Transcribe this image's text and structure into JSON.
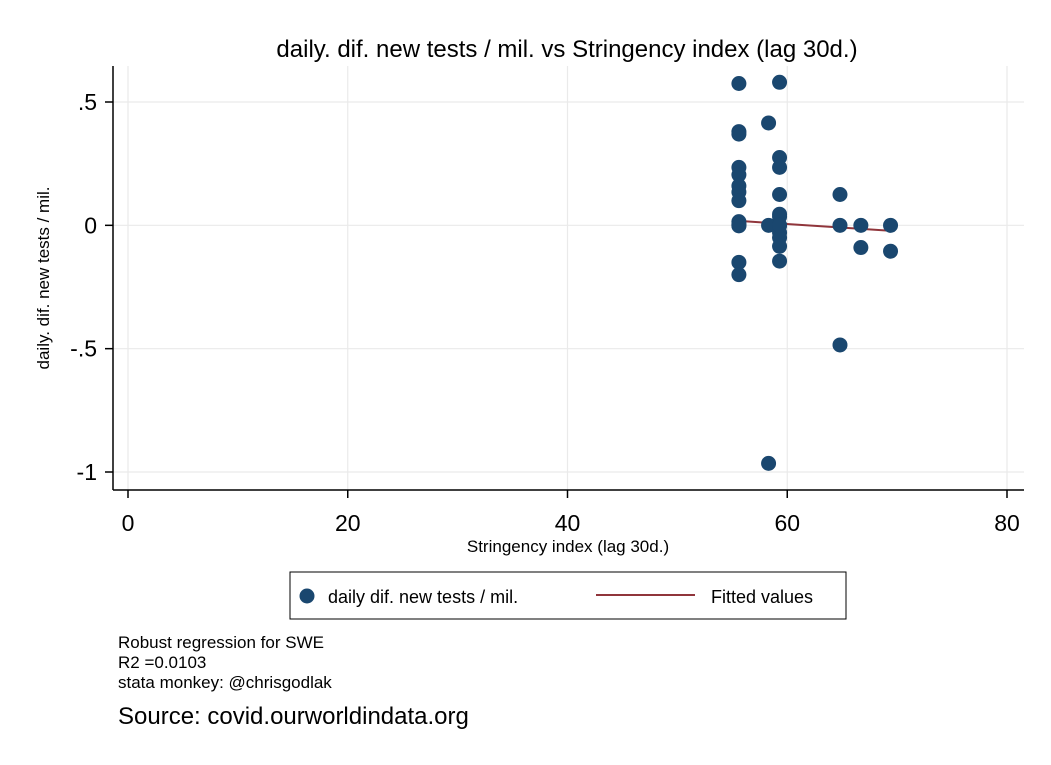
{
  "chart_data": {
    "type": "scatter",
    "title": "daily. dif. new tests / mil. vs Stringency index (lag 30d.)",
    "xlabel": "Stringency index (lag 30d.)",
    "ylabel": "daily. dif. new tests / mil.",
    "xlim": [
      0,
      80
    ],
    "ylim": [
      -1,
      0.5
    ],
    "xticks": [
      0,
      20,
      40,
      60,
      80
    ],
    "xtick_labels": [
      "0",
      "20",
      "40",
      "60",
      "80"
    ],
    "yticks": [
      0.5,
      0,
      -0.5,
      -1
    ],
    "ytick_labels": [
      ".5",
      "0",
      "-.5",
      "-1"
    ],
    "grid": true,
    "legend_position": "bottom",
    "series": [
      {
        "name": "daily dif. new tests / mil.",
        "type": "scatter",
        "color": "#1a476f",
        "x": [
          55.6,
          55.6,
          55.6,
          55.6,
          55.6,
          55.6,
          55.6,
          55.6,
          55.6,
          55.6,
          55.6,
          55.6,
          55.6,
          55.6,
          58.3,
          58.3,
          58.3,
          59.3,
          59.3,
          59.3,
          59.3,
          59.3,
          59.3,
          59.3,
          59.3,
          59.3,
          59.3,
          59.3,
          59.3,
          64.8,
          64.8,
          64.8,
          66.7,
          66.7,
          69.4,
          69.4
        ],
        "y": [
          0.575,
          0.38,
          0.37,
          0.235,
          0.205,
          0.16,
          0.135,
          0.1,
          0.015,
          0.0,
          -0.15,
          -0.2,
          0.005,
          -0.002,
          0.415,
          0.0,
          -0.965,
          0.58,
          0.275,
          0.235,
          0.125,
          0.045,
          0.035,
          0.0,
          -0.03,
          -0.05,
          -0.085,
          -0.145,
          0.0,
          0.125,
          0.0,
          -0.485,
          0.0,
          -0.09,
          0.0,
          -0.105
        ]
      },
      {
        "name": "Fitted values",
        "type": "line",
        "color": "#90353b",
        "x": [
          55.6,
          69.4
        ],
        "y": [
          0.018,
          -0.022
        ]
      }
    ]
  },
  "notes": [
    "Robust regression for SWE",
    "R2 =0.0103",
    "stata monkey: @chrisgodlak"
  ],
  "source": "Source: covid.ourworldindata.org"
}
